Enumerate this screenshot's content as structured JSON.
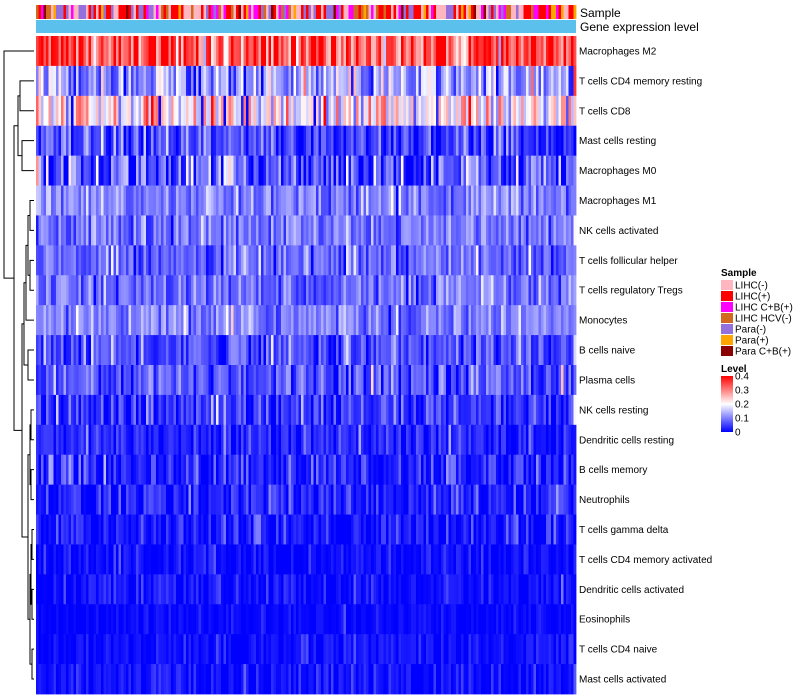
{
  "chart_data": {
    "type": "heatmap",
    "title": "",
    "n_samples": 216,
    "column_annotations": [
      {
        "name": "Sample",
        "type": "categorical"
      },
      {
        "name": "Gene expression level",
        "type": "level",
        "color": "#5bc0eb"
      }
    ],
    "rows": [
      {
        "label": "Macrophages M2",
        "mean": 0.33,
        "spread": 0.08
      },
      {
        "label": "T cells CD4 memory resting",
        "mean": 0.12,
        "spread": 0.06
      },
      {
        "label": "T cells CD8",
        "mean": 0.2,
        "spread": 0.08
      },
      {
        "label": "Mast cells resting",
        "mean": 0.05,
        "spread": 0.05
      },
      {
        "label": "Macrophages M0",
        "mean": 0.07,
        "spread": 0.07
      },
      {
        "label": "Macrophages M1",
        "mean": 0.1,
        "spread": 0.035
      },
      {
        "label": "NK cells activated",
        "mean": 0.09,
        "spread": 0.035
      },
      {
        "label": "T cells follicular helper",
        "mean": 0.08,
        "spread": 0.035
      },
      {
        "label": "T cells regulatory  Tregs",
        "mean": 0.08,
        "spread": 0.035
      },
      {
        "label": "Monocytes",
        "mean": 0.1,
        "spread": 0.035
      },
      {
        "label": "B cells naive",
        "mean": 0.06,
        "spread": 0.04
      },
      {
        "label": "Plasma cells",
        "mean": 0.07,
        "spread": 0.04
      },
      {
        "label": "NK cells resting",
        "mean": 0.035,
        "spread": 0.04
      },
      {
        "label": "Dendritic cells resting",
        "mean": 0.025,
        "spread": 0.03
      },
      {
        "label": "B cells memory",
        "mean": 0.03,
        "spread": 0.035
      },
      {
        "label": "Neutrophils",
        "mean": 0.025,
        "spread": 0.03
      },
      {
        "label": "T cells gamma delta",
        "mean": 0.015,
        "spread": 0.03
      },
      {
        "label": "T cells CD4 memory activated",
        "mean": 0.008,
        "spread": 0.02
      },
      {
        "label": "Dendritic cells activated",
        "mean": 0.01,
        "spread": 0.02
      },
      {
        "label": "Eosinophils",
        "mean": 0.004,
        "spread": 0.012
      },
      {
        "label": "T cells CD4 naive",
        "mean": 0.008,
        "spread": 0.02
      },
      {
        "label": "Mast cells activated",
        "mean": 0.012,
        "spread": 0.02
      }
    ],
    "color_scale": {
      "name": "Level",
      "min": 0,
      "max": 0.4,
      "ticks": [
        "0.4",
        "0.3",
        "0.2",
        "0.1",
        "0"
      ],
      "tick_values": [
        0.4,
        0.3,
        0.2,
        0.1,
        0
      ],
      "colors": [
        "#0000ff",
        "#ffffff",
        "#ff0000"
      ]
    },
    "legend": {
      "position": "right",
      "sample_title": "Sample",
      "sample_groups": [
        {
          "label": "LIHC(-)",
          "color": "#ffb6c1"
        },
        {
          "label": "LIHC(+)",
          "color": "#ff0000"
        },
        {
          "label": "LIHC C+B(+)",
          "color": "#ff00ff"
        },
        {
          "label": "LIHC HCV(-)",
          "color": "#d2691e"
        },
        {
          "label": "Para(-)",
          "color": "#9370db"
        },
        {
          "label": "Para(+)",
          "color": "#ffa500"
        },
        {
          "label": "Para C+B(+)",
          "color": "#8b0000"
        }
      ],
      "sample_proportions": [
        0.3,
        0.22,
        0.13,
        0.05,
        0.18,
        0.07,
        0.05
      ],
      "level_title": "Level"
    },
    "dendrogram": "row clustering on left side"
  }
}
